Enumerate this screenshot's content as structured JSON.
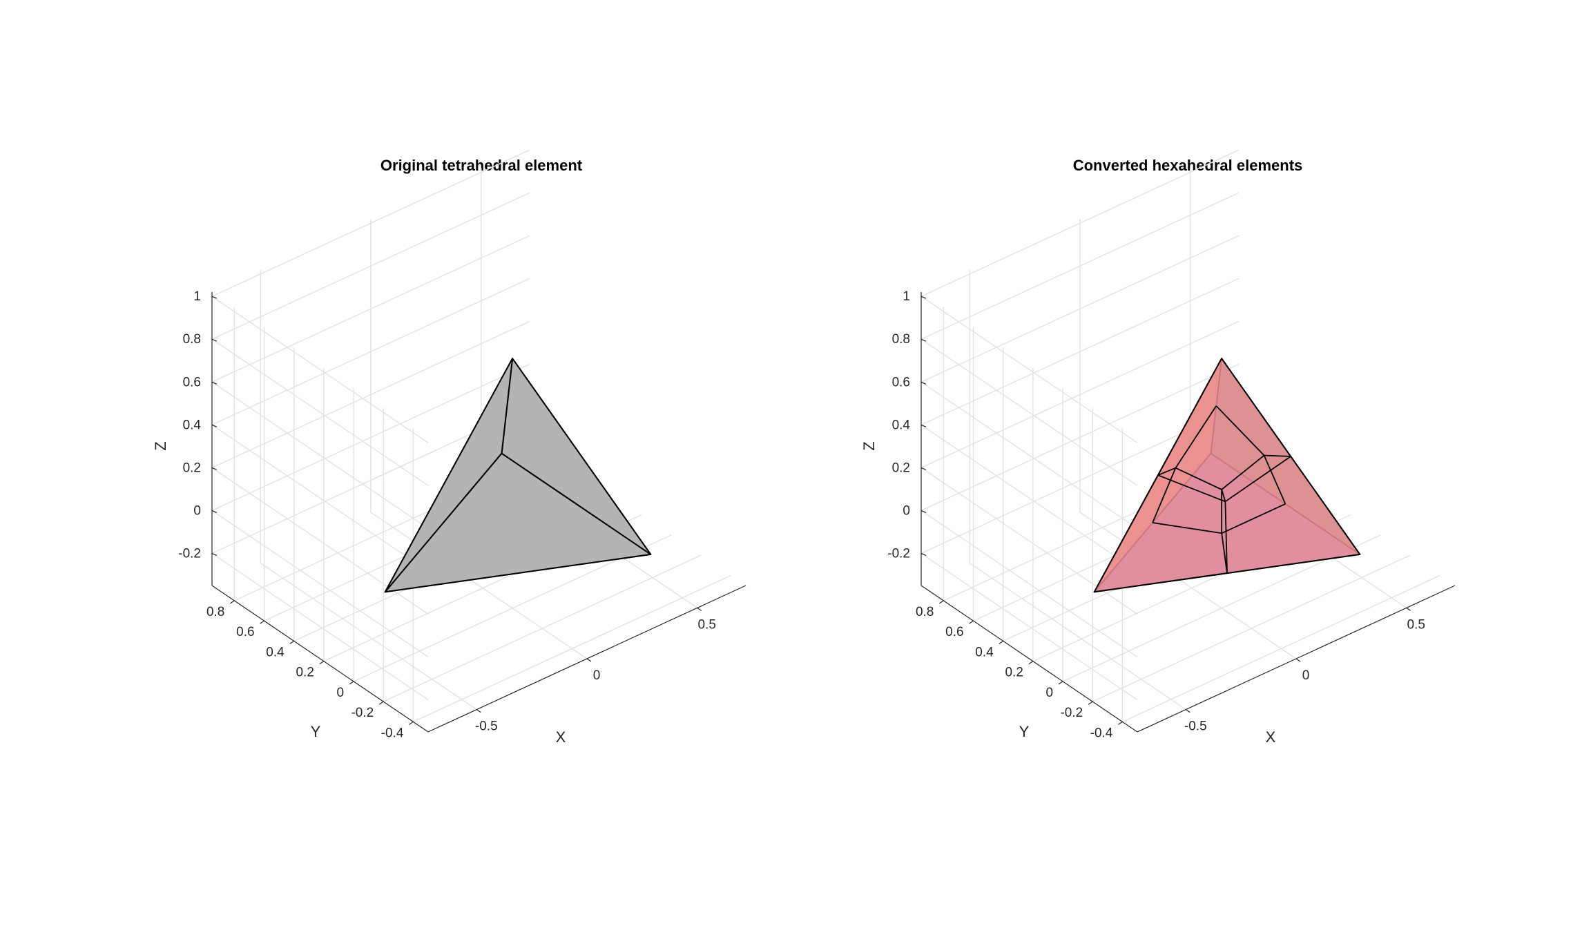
{
  "chart_data": [
    {
      "type": "3d-surface",
      "title": "Original tetrahedral element",
      "xlabel": "X",
      "ylabel": "Y",
      "zlabel": "Z",
      "xticks": [
        "-0.5",
        "0",
        "0.5"
      ],
      "yticks": [
        "-0.4",
        "-0.2",
        "0",
        "0.2",
        "0.4",
        "0.6",
        "0.8"
      ],
      "zticks": [
        "-0.2",
        "0",
        "0.2",
        "0.4",
        "0.6",
        "0.8",
        "1"
      ],
      "grid": true,
      "vertices": [
        [
          0,
          0,
          0.816
        ],
        [
          -0.577,
          0,
          0
        ],
        [
          0.289,
          -0.5,
          0
        ],
        [
          0.289,
          0.5,
          0
        ]
      ],
      "faces": [
        {
          "v": [
            0,
            1,
            2
          ],
          "color": "#b3b3b3"
        },
        {
          "v": [
            0,
            2,
            3
          ],
          "color": "#b3b3b3"
        },
        {
          "v": [
            0,
            3,
            1
          ],
          "color": "#b3b3b3"
        },
        {
          "v": [
            1,
            2,
            3
          ],
          "color": "#b3b3b3"
        }
      ]
    },
    {
      "type": "3d-surface",
      "title": "Converted hexahedral elements",
      "xlabel": "X",
      "ylabel": "Y",
      "zlabel": "Z",
      "xticks": [
        "-0.5",
        "0",
        "0.5"
      ],
      "yticks": [
        "-0.4",
        "-0.2",
        "0",
        "0.2",
        "0.4",
        "0.6",
        "0.8"
      ],
      "zticks": [
        "-0.2",
        "0",
        "0.2",
        "0.4",
        "0.6",
        "0.8",
        "1"
      ],
      "grid": true,
      "vertices": [
        [
          0,
          0,
          0.816
        ],
        [
          -0.577,
          0,
          0
        ],
        [
          0.289,
          -0.5,
          0
        ],
        [
          0.289,
          0.5,
          0
        ]
      ],
      "faces": [
        {
          "v": [
            2,
            3,
            0
          ],
          "color": "#77c98a"
        },
        {
          "v": [
            1,
            2,
            3
          ],
          "color": "#93b4f0"
        },
        {
          "v": [
            3,
            0,
            1
          ],
          "color": "#f3d77e"
        },
        {
          "v": [
            0,
            1,
            2
          ],
          "color": "#e98792"
        }
      ],
      "hex_colors": [
        "#e98792",
        "#f3d77e",
        "#77c98a",
        "#93b4f0"
      ]
    }
  ]
}
